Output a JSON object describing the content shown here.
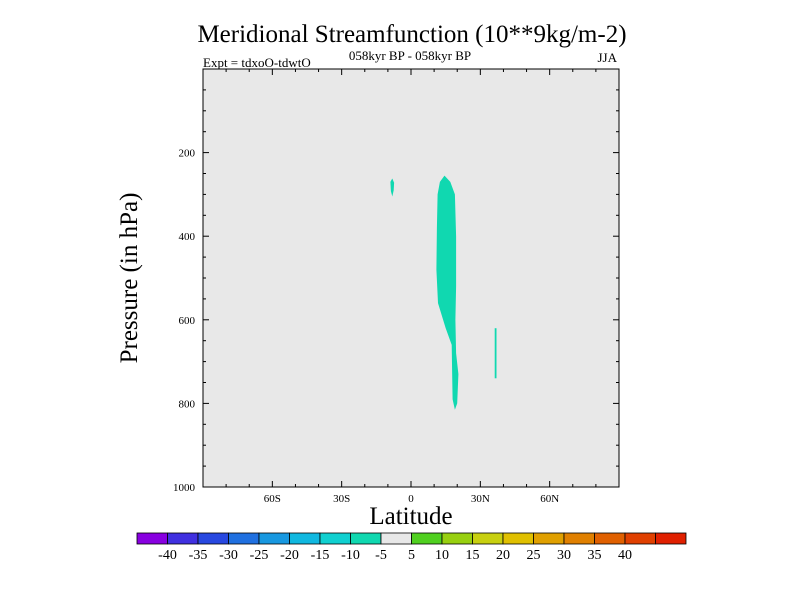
{
  "chart_data": {
    "type": "heatmap",
    "title": "Meridional Streamfunction (10**9kg/m-2)",
    "subtitle": "058kyr BP - 058kyr BP",
    "left_label": "Expt = tdxoO-tdwtO",
    "right_label": "JJA",
    "xlabel": "Latitude",
    "ylabel": "Pressure (in hPa)",
    "x_range": [
      -90,
      90
    ],
    "y_range": [
      1000,
      0
    ],
    "y_scale": "linear, inverted",
    "x_ticks": [
      {
        "value": -60,
        "label": "60S"
      },
      {
        "value": -30,
        "label": "30S"
      },
      {
        "value": 0,
        "label": "0"
      },
      {
        "value": 30,
        "label": "30N"
      },
      {
        "value": 60,
        "label": "60N"
      }
    ],
    "y_ticks": [
      {
        "value": 200,
        "label": "200"
      },
      {
        "value": 400,
        "label": "400"
      },
      {
        "value": 600,
        "label": "600"
      },
      {
        "value": 800,
        "label": "800"
      },
      {
        "value": 1000,
        "label": "1000"
      }
    ],
    "background_value_range": [
      -5,
      5
    ],
    "background_color": "#e8e8e8",
    "regions": [
      {
        "level": "-10 to -5",
        "color": "#10d8b0",
        "outline": [
          [
            11.5,
            300
          ],
          [
            12.5,
            270
          ],
          [
            14.5,
            255
          ],
          [
            17,
            270
          ],
          [
            19,
            300
          ],
          [
            19.5,
            400
          ],
          [
            19.5,
            520
          ],
          [
            19.2,
            600
          ],
          [
            19.5,
            680
          ],
          [
            20.5,
            730
          ],
          [
            20,
            800
          ],
          [
            19,
            815
          ],
          [
            18,
            790
          ],
          [
            17.8,
            720
          ],
          [
            17.6,
            660
          ],
          [
            15,
            620
          ],
          [
            11.7,
            560
          ],
          [
            11,
            480
          ],
          [
            11.2,
            380
          ]
        ]
      },
      {
        "level": "-10 to -5",
        "color": "#10d8b0",
        "outline": [
          [
            -8.9,
            270
          ],
          [
            -8.1,
            262
          ],
          [
            -7.3,
            272
          ],
          [
            -7.5,
            290
          ],
          [
            -8.1,
            305
          ],
          [
            -8.7,
            292
          ]
        ]
      },
      {
        "level": "-10 to -5",
        "color": "#10d8b0",
        "outline": [
          [
            36.2,
            620
          ],
          [
            37.0,
            620
          ],
          [
            37.0,
            740
          ],
          [
            36.2,
            740
          ]
        ]
      }
    ],
    "colorbar": {
      "colors": [
        "#8800e0",
        "#4030e0",
        "#2848e0",
        "#2070e0",
        "#1898e0",
        "#10b8e0",
        "#10d0d0",
        "#10d8b0",
        "#e8e8e8",
        "#50d020",
        "#98d010",
        "#c8d010",
        "#e0c000",
        "#e0a000",
        "#e08000",
        "#e06000",
        "#e04000",
        "#e02000"
      ],
      "labels": [
        "-40",
        "-35",
        "-30",
        "-25",
        "-20",
        "-15",
        "-10",
        "-5",
        "5",
        "10",
        "15",
        "20",
        "25",
        "30",
        "35",
        "40"
      ]
    }
  }
}
